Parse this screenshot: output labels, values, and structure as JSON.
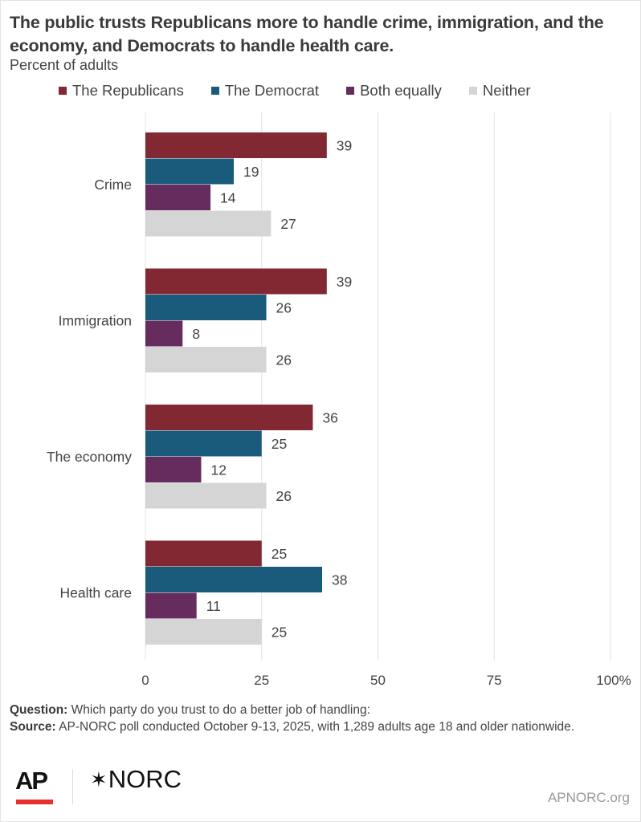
{
  "title": "The public trusts Republicans more to handle crime, immigration, and the economy, and Democrats to handle health care.",
  "subtitle": "Percent of adults",
  "legend": [
    {
      "label": "The Republicans",
      "color": "#822832"
    },
    {
      "label": "The Democrat",
      "color": "#1a5a7a"
    },
    {
      "label": "Both equally",
      "color": "#662c5e"
    },
    {
      "label": "Neither",
      "color": "#d5d5d5"
    }
  ],
  "chart_data": {
    "type": "bar",
    "orientation": "horizontal",
    "title": "The public trusts Republicans more to handle crime, immigration, and the economy, and Democrats to handle health care.",
    "subtitle": "Percent of adults",
    "categories": [
      "Crime",
      "Immigration",
      "The economy",
      "Health care"
    ],
    "series": [
      {
        "name": "The Republicans",
        "color": "#822832",
        "values": [
          39,
          39,
          36,
          25
        ]
      },
      {
        "name": "The Democrat",
        "color": "#1a5a7a",
        "values": [
          19,
          26,
          25,
          38
        ]
      },
      {
        "name": "Both equally",
        "color": "#662c5e",
        "values": [
          14,
          8,
          12,
          11
        ]
      },
      {
        "name": "Neither",
        "color": "#d5d5d5",
        "values": [
          27,
          26,
          26,
          25
        ]
      }
    ],
    "xlim": [
      0,
      100
    ],
    "xticks": [
      "0",
      "25",
      "50",
      "75",
      "100%"
    ],
    "xtick_values": [
      0,
      25,
      50,
      75,
      100
    ],
    "grid": true,
    "legend_position": "top",
    "xlabel": "",
    "ylabel": ""
  },
  "footer": {
    "question_label": "Question:",
    "question_text": " Which party do you trust to do a better job of handling:",
    "source_label": "Source:",
    "source_text": " AP-NORC poll conducted October 9-13, 2025, with 1,289 adults age 18 and older nationwide."
  },
  "logos": {
    "ap": "AP",
    "norc": "NORC",
    "norc_star": "✶"
  },
  "site": "APNORC.org"
}
